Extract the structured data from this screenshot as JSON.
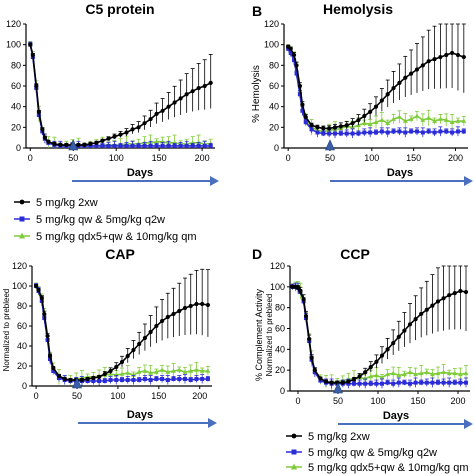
{
  "colors": {
    "black_series": "#000000",
    "blue_series": "#2b2bd8",
    "green_series": "#7fcc3a",
    "arrow": "#4a6fbf",
    "marker": "#3a5fa8"
  },
  "panels": [
    {
      "letter": "",
      "title": "C5 protein",
      "ylabel": "",
      "ylabel2": "",
      "xlabel": "Days",
      "marker_label": "50"
    },
    {
      "letter": "B",
      "title": "Hemolysis",
      "ylabel": "% Hemolysis",
      "ylabel2": "",
      "xlabel": "Days",
      "marker_label": "50"
    },
    {
      "letter": "",
      "title": "CAP",
      "ylabel": "Normalized to prebleed",
      "ylabel2": "",
      "xlabel": "Days",
      "marker_label": "50"
    },
    {
      "letter": "D",
      "title": "CCP",
      "ylabel": "% Complement Activity",
      "ylabel2": "Normalized to prebleed",
      "xlabel": "Days",
      "marker_label": "50"
    }
  ],
  "legend": [
    {
      "label": "5 mg/kg 2xw"
    },
    {
      "label": "5 mg/kg qw & 5mg/kg q2w"
    },
    {
      "label": "5 mg/kg qdx5+qw & 10mg/kg qm"
    }
  ],
  "chart_data": [
    {
      "type": "line",
      "title": "C5 protein",
      "xlabel": "Days",
      "ylabel": "",
      "xlim": [
        -5,
        215
      ],
      "ylim": [
        0,
        120
      ],
      "xticks": [
        0,
        50,
        100,
        150,
        200
      ],
      "yticks": [
        0,
        20,
        40,
        60,
        80,
        100,
        120
      ],
      "series": [
        {
          "name": "5 mg/kg 2xw",
          "x": [
            0,
            3,
            7,
            10,
            14,
            17,
            21,
            28,
            35,
            42,
            49,
            56,
            63,
            70,
            77,
            84,
            91,
            98,
            105,
            112,
            119,
            126,
            133,
            140,
            147,
            154,
            161,
            168,
            175,
            182,
            189,
            196,
            203,
            210
          ],
          "y": [
            100,
            90,
            60,
            35,
            18,
            10,
            6,
            4,
            3,
            3,
            3,
            3,
            3,
            4,
            5,
            7,
            9,
            11,
            13,
            15,
            18,
            20,
            24,
            28,
            33,
            36,
            40,
            44,
            48,
            52,
            55,
            58,
            60,
            63
          ]
        },
        {
          "name": "5 mg/kg qw & 5mg/kg q2w",
          "x": [
            0,
            3,
            7,
            10,
            14,
            17,
            21,
            28,
            35,
            42,
            49,
            56,
            63,
            70,
            77,
            84,
            91,
            98,
            105,
            112,
            119,
            126,
            133,
            140,
            147,
            154,
            161,
            168,
            175,
            182,
            189,
            196,
            203,
            210
          ],
          "y": [
            100,
            88,
            58,
            32,
            16,
            9,
            5,
            3,
            2,
            2,
            2,
            2,
            2,
            2,
            2,
            2,
            2,
            2,
            2,
            2,
            2,
            2,
            2,
            2,
            2,
            2,
            2,
            2,
            2,
            2,
            2,
            2,
            2,
            2
          ]
        },
        {
          "name": "5 mg/kg qdx5+qw & 10mg/kg qm",
          "x": [
            0,
            3,
            7,
            10,
            14,
            17,
            21,
            28,
            35,
            42,
            49,
            56,
            63,
            70,
            77,
            84,
            91,
            98,
            105,
            112,
            119,
            126,
            133,
            140,
            147,
            154,
            161,
            168,
            175,
            182,
            189,
            196,
            203,
            210
          ],
          "y": [
            100,
            89,
            59,
            33,
            17,
            9,
            5,
            3,
            2,
            2,
            2,
            2,
            2,
            2,
            2,
            3,
            3,
            3,
            3,
            4,
            4,
            4,
            5,
            5,
            6,
            6,
            5,
            5,
            4,
            4,
            5,
            5,
            4,
            4
          ]
        }
      ]
    },
    {
      "type": "line",
      "title": "Hemolysis",
      "xlabel": "Days",
      "ylabel": "% Hemolysis",
      "xlim": [
        -5,
        215
      ],
      "ylim": [
        0,
        120
      ],
      "xticks": [
        0,
        50,
        100,
        150,
        200
      ],
      "yticks": [
        0,
        20,
        40,
        60,
        80,
        100,
        120
      ],
      "series": [
        {
          "name": "5 mg/kg 2xw",
          "x": [
            0,
            3,
            7,
            10,
            14,
            17,
            21,
            28,
            35,
            42,
            49,
            56,
            63,
            70,
            77,
            84,
            91,
            98,
            105,
            112,
            119,
            126,
            133,
            140,
            147,
            154,
            161,
            168,
            175,
            182,
            189,
            196,
            203,
            210
          ],
          "y": [
            98,
            96,
            90,
            80,
            60,
            42,
            30,
            22,
            20,
            19,
            19,
            20,
            21,
            22,
            24,
            27,
            31,
            35,
            40,
            46,
            52,
            58,
            63,
            68,
            72,
            76,
            80,
            84,
            86,
            88,
            90,
            92,
            90,
            88
          ]
        },
        {
          "name": "5 mg/kg qw & 5mg/kg q2w",
          "x": [
            0,
            3,
            7,
            10,
            14,
            17,
            21,
            28,
            35,
            42,
            49,
            56,
            63,
            70,
            77,
            84,
            91,
            98,
            105,
            112,
            119,
            126,
            133,
            140,
            147,
            154,
            161,
            168,
            175,
            182,
            189,
            196,
            203,
            210
          ],
          "y": [
            96,
            92,
            85,
            72,
            52,
            36,
            25,
            18,
            15,
            14,
            14,
            14,
            14,
            14,
            14,
            14,
            15,
            15,
            15,
            16,
            15,
            16,
            16,
            15,
            16,
            16,
            15,
            16,
            15,
            16,
            16,
            15,
            16,
            16
          ]
        },
        {
          "name": "5 mg/kg qdx5+qw & 10mg/kg qm",
          "x": [
            0,
            3,
            7,
            10,
            14,
            17,
            21,
            28,
            35,
            42,
            49,
            56,
            63,
            70,
            77,
            84,
            91,
            98,
            105,
            112,
            119,
            126,
            133,
            140,
            147,
            154,
            161,
            168,
            175,
            182,
            189,
            196,
            203,
            210
          ],
          "y": [
            97,
            94,
            87,
            75,
            55,
            38,
            27,
            20,
            17,
            16,
            17,
            18,
            19,
            21,
            20,
            22,
            24,
            23,
            25,
            27,
            24,
            28,
            30,
            26,
            28,
            31,
            27,
            29,
            26,
            28,
            27,
            25,
            26,
            26
          ]
        }
      ]
    },
    {
      "type": "line",
      "title": "CAP",
      "xlabel": "Days",
      "ylabel": "Normalized to prebleed",
      "xlim": [
        -5,
        215
      ],
      "ylim": [
        0,
        120
      ],
      "xticks": [
        0,
        50,
        100,
        150,
        200
      ],
      "yticks": [
        0,
        20,
        40,
        60,
        80,
        100,
        120
      ],
      "series": [
        {
          "name": "5 mg/kg 2xw",
          "x": [
            0,
            3,
            7,
            10,
            14,
            17,
            21,
            28,
            35,
            42,
            49,
            56,
            63,
            70,
            77,
            84,
            91,
            98,
            105,
            112,
            119,
            126,
            133,
            140,
            147,
            154,
            161,
            168,
            175,
            182,
            189,
            196,
            203,
            210
          ],
          "y": [
            100,
            96,
            88,
            72,
            50,
            30,
            18,
            10,
            7,
            6,
            6,
            6,
            7,
            8,
            9,
            12,
            15,
            19,
            24,
            30,
            36,
            42,
            48,
            54,
            60,
            65,
            69,
            72,
            75,
            78,
            80,
            82,
            82,
            81
          ]
        },
        {
          "name": "5 mg/kg qw & 5mg/kg q2w",
          "x": [
            0,
            3,
            7,
            10,
            14,
            17,
            21,
            28,
            35,
            42,
            49,
            56,
            63,
            70,
            77,
            84,
            91,
            98,
            105,
            112,
            119,
            126,
            133,
            140,
            147,
            154,
            161,
            168,
            175,
            182,
            189,
            196,
            203,
            210
          ],
          "y": [
            100,
            95,
            85,
            68,
            46,
            27,
            15,
            8,
            6,
            5,
            5,
            5,
            5,
            5,
            5,
            5,
            6,
            6,
            6,
            6,
            6,
            6,
            7,
            6,
            7,
            7,
            6,
            7,
            7,
            7,
            6,
            7,
            7,
            7
          ]
        },
        {
          "name": "5 mg/kg qdx5+qw & 10mg/kg qm",
          "x": [
            0,
            3,
            7,
            10,
            14,
            17,
            21,
            28,
            35,
            42,
            49,
            56,
            63,
            70,
            77,
            84,
            91,
            98,
            105,
            112,
            119,
            126,
            133,
            140,
            147,
            154,
            161,
            168,
            175,
            182,
            189,
            196,
            203,
            210
          ],
          "y": [
            100,
            95,
            86,
            70,
            48,
            29,
            17,
            9,
            7,
            6,
            7,
            8,
            9,
            9,
            10,
            11,
            12,
            11,
            12,
            13,
            11,
            14,
            15,
            13,
            14,
            16,
            14,
            15,
            16,
            14,
            15,
            16,
            15,
            15
          ]
        }
      ]
    },
    {
      "type": "line",
      "title": "CCP",
      "xlabel": "Days",
      "ylabel": "% Complement Activity / Normalized to prebleed",
      "xlim": [
        -10,
        215
      ],
      "ylim": [
        0,
        120
      ],
      "xticks": [
        0,
        50,
        100,
        150,
        200
      ],
      "yticks": [
        0,
        20,
        40,
        60,
        80,
        100,
        120
      ],
      "series": [
        {
          "name": "5 mg/kg 2xw",
          "x": [
            -7,
            -3,
            0,
            3,
            7,
            10,
            14,
            17,
            21,
            28,
            35,
            42,
            49,
            56,
            63,
            70,
            77,
            84,
            91,
            98,
            105,
            112,
            119,
            126,
            133,
            140,
            147,
            154,
            161,
            168,
            175,
            182,
            189,
            196,
            203,
            210
          ],
          "y": [
            100,
            100,
            99,
            96,
            88,
            72,
            50,
            32,
            20,
            12,
            9,
            8,
            8,
            8,
            9,
            11,
            14,
            18,
            23,
            28,
            34,
            40,
            46,
            52,
            58,
            64,
            69,
            74,
            78,
            82,
            86,
            89,
            92,
            94,
            96,
            95
          ]
        },
        {
          "name": "5 mg/kg qw & 5mg/kg q2w",
          "x": [
            -7,
            -3,
            0,
            3,
            7,
            10,
            14,
            17,
            21,
            28,
            35,
            42,
            49,
            56,
            63,
            70,
            77,
            84,
            91,
            98,
            105,
            112,
            119,
            126,
            133,
            140,
            147,
            154,
            161,
            168,
            175,
            182,
            189,
            196,
            203,
            210
          ],
          "y": [
            100,
            100,
            99,
            95,
            86,
            70,
            48,
            30,
            18,
            10,
            8,
            7,
            7,
            7,
            7,
            7,
            7,
            7,
            7,
            7,
            7,
            8,
            7,
            8,
            8,
            7,
            8,
            8,
            8,
            8,
            8,
            8,
            8,
            8,
            8,
            8
          ]
        },
        {
          "name": "5 mg/kg qdx5+qw & 10mg/kg qm",
          "x": [
            -7,
            -3,
            0,
            3,
            7,
            10,
            14,
            17,
            21,
            28,
            35,
            42,
            49,
            56,
            63,
            70,
            77,
            84,
            91,
            98,
            105,
            112,
            119,
            126,
            133,
            140,
            147,
            154,
            161,
            168,
            175,
            182,
            189,
            196,
            203,
            210
          ],
          "y": [
            100,
            100,
            99,
            96,
            87,
            71,
            49,
            31,
            19,
            11,
            9,
            8,
            9,
            10,
            11,
            12,
            13,
            12,
            14,
            15,
            13,
            16,
            17,
            15,
            16,
            18,
            16,
            17,
            18,
            16,
            17,
            18,
            17,
            17,
            16,
            17
          ]
        }
      ]
    }
  ]
}
